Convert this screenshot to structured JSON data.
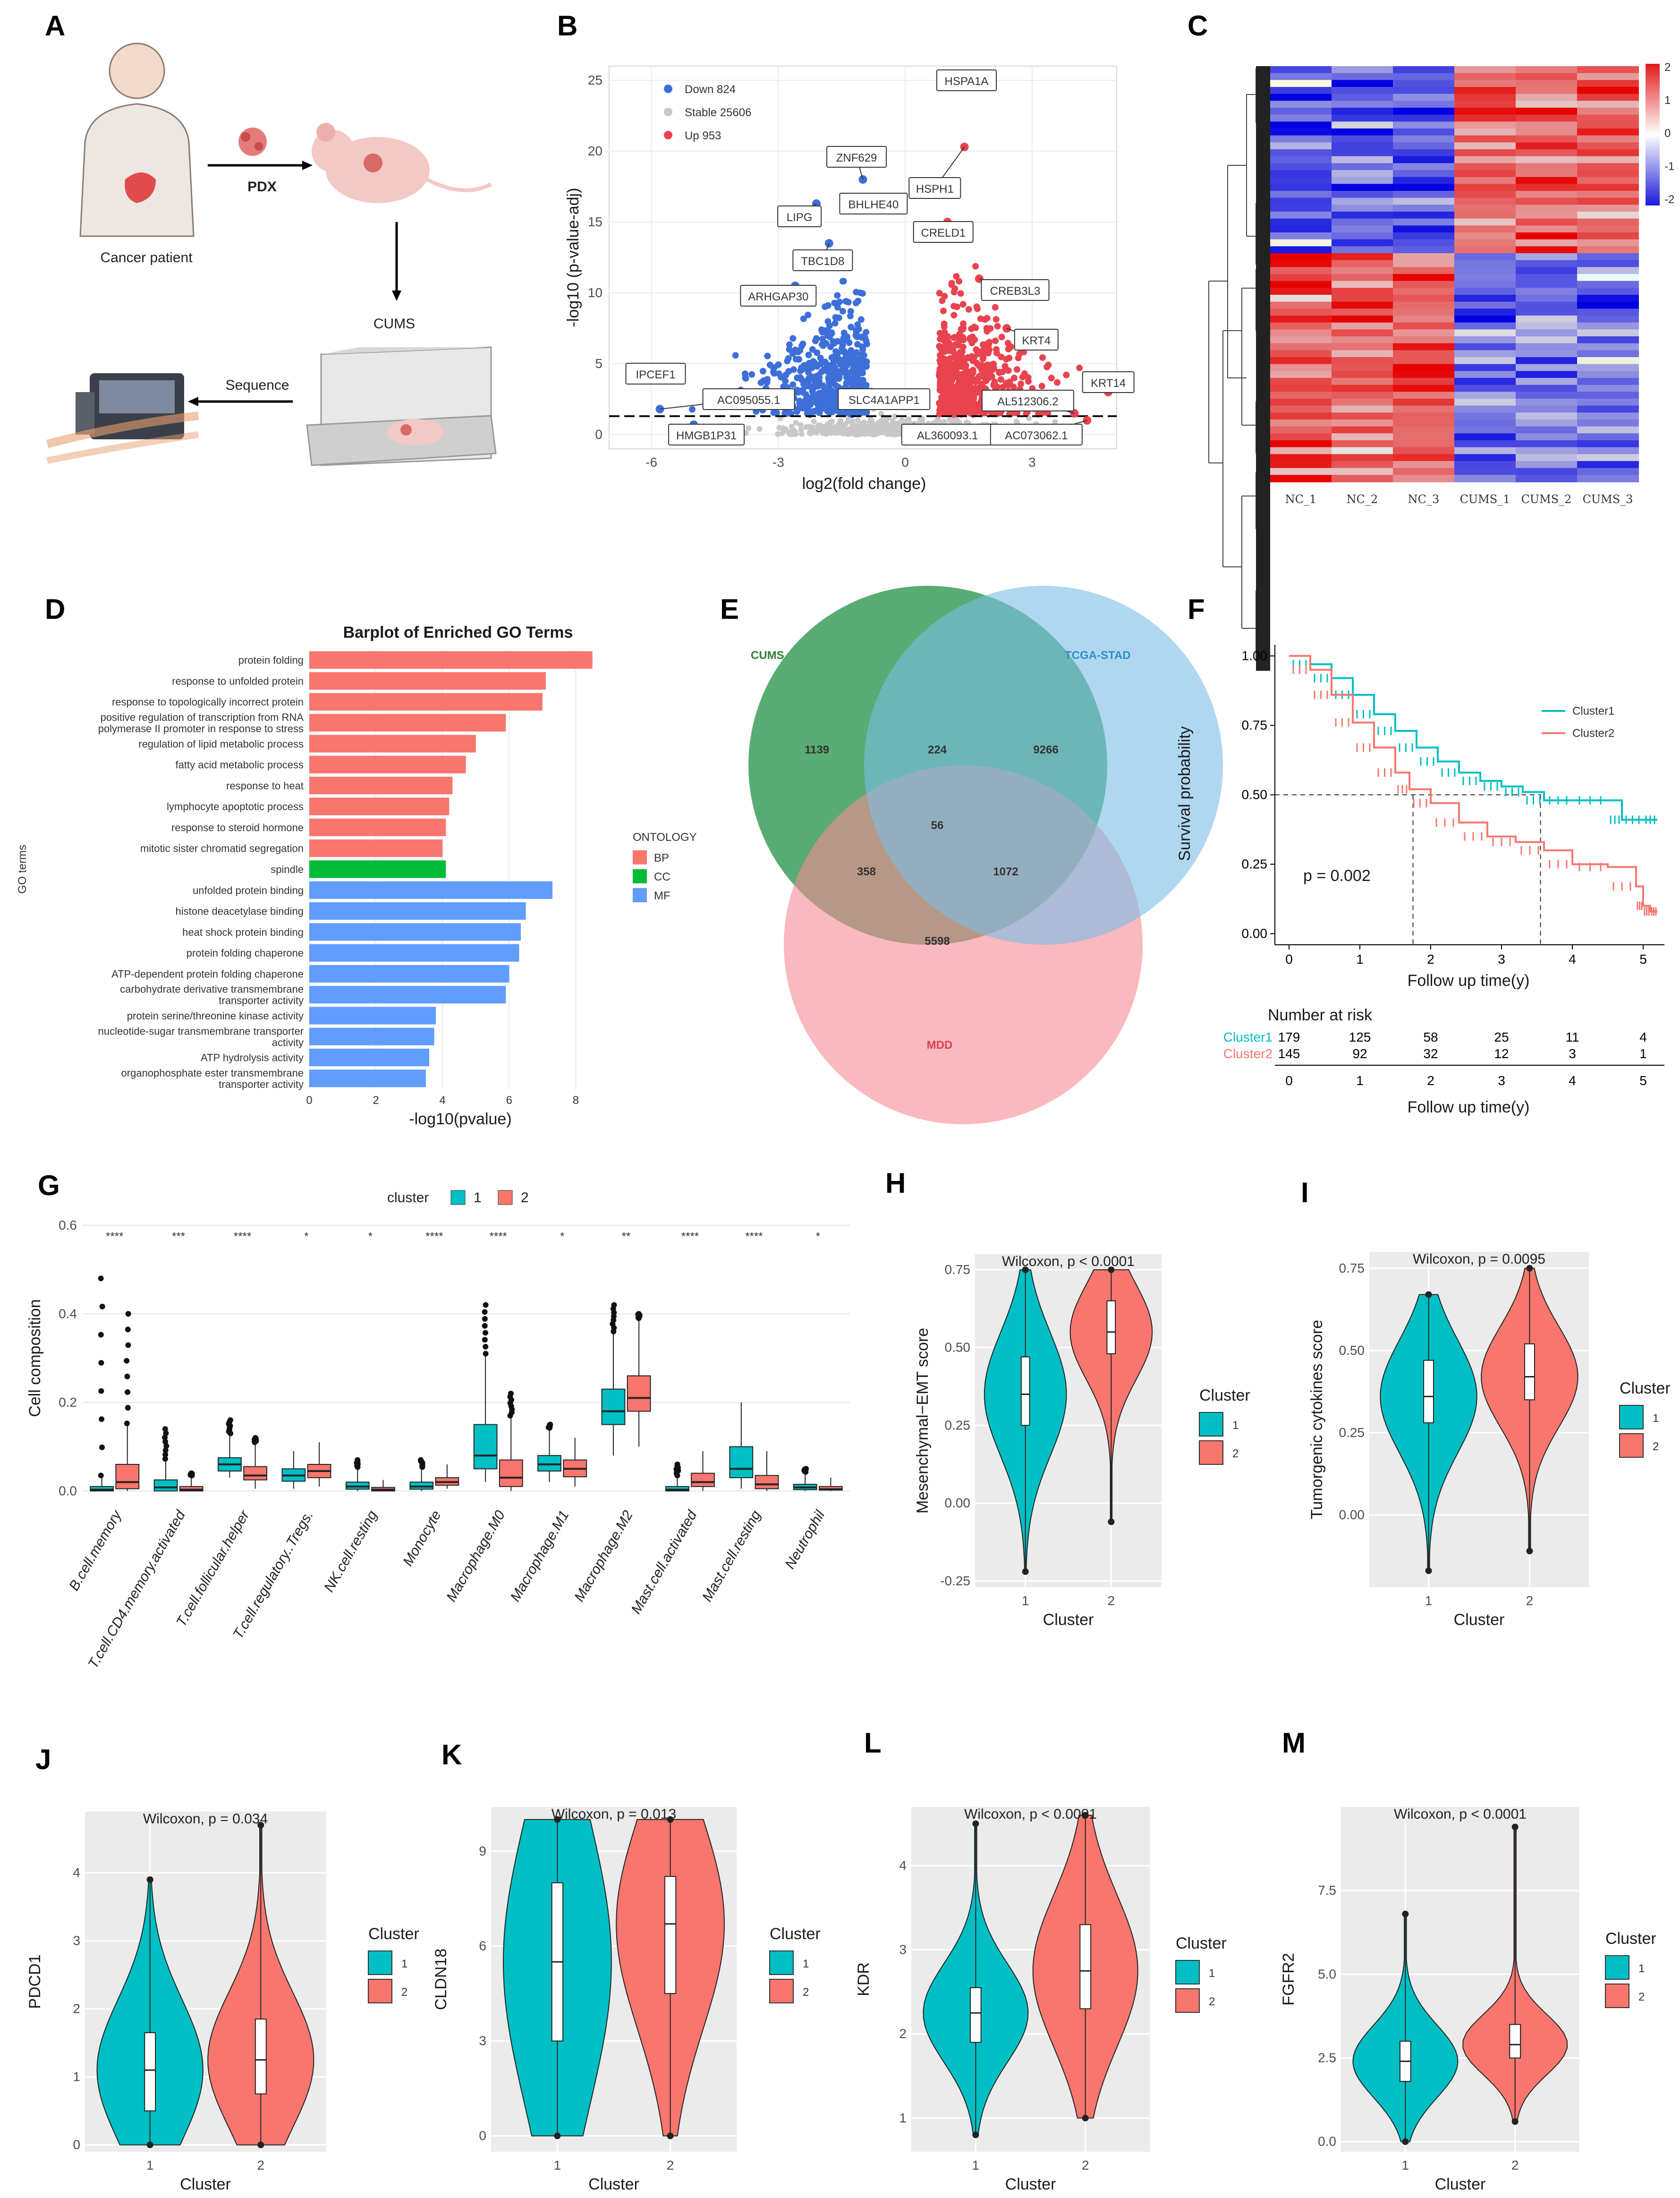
{
  "panels": {
    "A": {
      "letter": "A",
      "pdx": "PDX",
      "patient": "Cancer patient",
      "cums": "CUMS",
      "sequence": "Sequence"
    },
    "B": {
      "letter": "B"
    },
    "C": {
      "letter": "C"
    },
    "D": {
      "letter": "D"
    },
    "E": {
      "letter": "E"
    },
    "F": {
      "letter": "F"
    },
    "G": {
      "letter": "G"
    },
    "H": {
      "letter": "H"
    },
    "I": {
      "letter": "I"
    },
    "J": {
      "letter": "J"
    },
    "K": {
      "letter": "K"
    },
    "L": {
      "letter": "L"
    },
    "M": {
      "letter": "M"
    }
  },
  "colors": {
    "teal": "#00BFC4",
    "salmon": "#F8766D",
    "down": "#3E6FD8",
    "stable": "#C8C8C8",
    "up": "#E8434F",
    "bp": "#F8766D",
    "cc": "#00BA38",
    "mf": "#619CFF",
    "panelbg": "#EBEBEB",
    "venn_cums": "#3C9E5A",
    "venn_tcga": "#7BBCE6",
    "venn_mdd": "#F58A93"
  },
  "chart_data": [
    {
      "id": "B",
      "type": "scatter",
      "xlabel": "log2(fold change)",
      "ylabel": "-log10 (p-value-adj)",
      "xlim": [
        -7,
        5
      ],
      "ylim": [
        -1,
        26
      ],
      "xticks": [
        -6,
        -3,
        0,
        3
      ],
      "yticks": [
        0,
        5,
        10,
        15,
        20,
        25
      ],
      "threshold_y": 1.3,
      "legend": [
        {
          "label": "Down 824",
          "class": "down"
        },
        {
          "label": "Stable 25606",
          "class": "stable"
        },
        {
          "label": "Up 953",
          "class": "up"
        }
      ],
      "labels": [
        {
          "text": "HSPA1A",
          "x": 1.45,
          "y": 25.0,
          "lx": 1.45,
          "ly": 25.0,
          "cls": "up"
        },
        {
          "text": "ZNF629",
          "x": -1.0,
          "y": 18.0,
          "lx": -1.15,
          "ly": 19.6,
          "cls": "down"
        },
        {
          "text": "HSPH1",
          "x": 1.4,
          "y": 20.3,
          "lx": 0.7,
          "ly": 17.4,
          "cls": "up"
        },
        {
          "text": "BHLHE40",
          "x": -1.3,
          "y": 16.5,
          "lx": -0.75,
          "ly": 16.3,
          "cls": "down"
        },
        {
          "text": "LIPG",
          "x": -2.1,
          "y": 16.3,
          "lx": -2.5,
          "ly": 15.4,
          "cls": "down"
        },
        {
          "text": "CRELD1",
          "x": 1.0,
          "y": 15.0,
          "lx": 0.9,
          "ly": 14.3,
          "cls": "up"
        },
        {
          "text": "TBC1D8",
          "x": -1.8,
          "y": 13.5,
          "lx": -1.95,
          "ly": 12.3,
          "cls": "down"
        },
        {
          "text": "CREB3L3",
          "x": 1.75,
          "y": 11.0,
          "lx": 2.6,
          "ly": 10.2,
          "cls": "up"
        },
        {
          "text": "ARHGAP30",
          "x": -2.6,
          "y": 10.5,
          "lx": -3.0,
          "ly": 9.8,
          "cls": "down"
        },
        {
          "text": "KRT4",
          "x": 2.4,
          "y": 7.5,
          "lx": 3.1,
          "ly": 6.7,
          "cls": "up"
        },
        {
          "text": "IPCEF1",
          "x": -6.3,
          "y": 4.5,
          "lx": -5.9,
          "ly": 4.3,
          "cls": "down"
        },
        {
          "text": "KRT14",
          "x": 4.8,
          "y": 3.0,
          "lx": 4.8,
          "ly": 3.7,
          "cls": "up"
        },
        {
          "text": "AC095055.1",
          "x": -5.8,
          "y": 1.8,
          "lx": -3.7,
          "ly": 2.5,
          "cls": "down"
        },
        {
          "text": "SLC4A1APP1",
          "x": -0.8,
          "y": 3.0,
          "lx": -0.5,
          "ly": 2.5,
          "cls": "down"
        },
        {
          "text": "AL512306.2",
          "x": 4.0,
          "y": 1.5,
          "lx": 2.9,
          "ly": 2.4,
          "cls": "up"
        },
        {
          "text": "HMGB1P31",
          "x": -5.0,
          "y": 0.7,
          "lx": -4.7,
          "ly": 0.0,
          "cls": "down"
        },
        {
          "text": "AL360093.1",
          "x": 0.2,
          "y": 0.5,
          "lx": 1.0,
          "ly": 0.0,
          "cls": "up"
        },
        {
          "text": "AC073062.1",
          "x": 4.3,
          "y": 1.0,
          "lx": 3.1,
          "ly": 0.0,
          "cls": "up"
        }
      ]
    },
    {
      "id": "C",
      "type": "heatmap",
      "columns": [
        "NC_1",
        "NC_2",
        "NC_3",
        "CUMS_1",
        "CUMS_2",
        "CUMS_3"
      ],
      "scale_ticks": [
        2,
        1,
        0,
        -1,
        -2
      ]
    },
    {
      "id": "D",
      "type": "bar",
      "orientation": "horizontal",
      "title": "Barplot of Enriched GO Terms",
      "xlabel": "-log10(pvalue)",
      "ylabel": "GO terms",
      "xlim": [
        0,
        9
      ],
      "xticks": [
        0,
        2,
        4,
        6,
        8
      ],
      "legend_title": "ONTOLOGY",
      "legend": [
        "BP",
        "CC",
        "MF"
      ],
      "bars": [
        {
          "term": "protein folding",
          "value": 8.5,
          "ont": "BP"
        },
        {
          "term": "response to unfolded protein",
          "value": 7.1,
          "ont": "BP"
        },
        {
          "term": "response to topologically incorrect protein",
          "value": 7.0,
          "ont": "BP"
        },
        {
          "term": "positive regulation of transcription from RNA polymerase II promoter in response to stress",
          "value": 5.9,
          "ont": "BP"
        },
        {
          "term": "regulation of lipid metabolic process",
          "value": 5.0,
          "ont": "BP"
        },
        {
          "term": "fatty acid metabolic process",
          "value": 4.7,
          "ont": "BP"
        },
        {
          "term": "response to heat",
          "value": 4.3,
          "ont": "BP"
        },
        {
          "term": "lymphocyte apoptotic process",
          "value": 4.2,
          "ont": "BP"
        },
        {
          "term": "response to steroid hormone",
          "value": 4.1,
          "ont": "BP"
        },
        {
          "term": "mitotic sister chromatid segregation",
          "value": 4.0,
          "ont": "BP"
        },
        {
          "term": "spindle",
          "value": 4.1,
          "ont": "CC"
        },
        {
          "term": "unfolded protein binding",
          "value": 7.3,
          "ont": "MF"
        },
        {
          "term": "histone deacetylase binding",
          "value": 6.5,
          "ont": "MF"
        },
        {
          "term": "heat shock protein binding",
          "value": 6.35,
          "ont": "MF"
        },
        {
          "term": "protein folding chaperone",
          "value": 6.3,
          "ont": "MF"
        },
        {
          "term": "ATP-dependent protein folding chaperone",
          "value": 6.0,
          "ont": "MF"
        },
        {
          "term": "carbohydrate derivative transmembrane transporter activity",
          "value": 5.9,
          "ont": "MF"
        },
        {
          "term": "protein serine/threonine kinase activity",
          "value": 3.8,
          "ont": "MF"
        },
        {
          "term": "nucleotide-sugar transmembrane transporter activity",
          "value": 3.75,
          "ont": "MF"
        },
        {
          "term": "ATP hydrolysis activity",
          "value": 3.6,
          "ont": "MF"
        },
        {
          "term": "organophosphate ester transmembrane transporter activity",
          "value": 3.5,
          "ont": "MF"
        }
      ]
    },
    {
      "id": "E",
      "type": "venn",
      "sets": [
        "CUMS",
        "TCGA-STAD",
        "MDD"
      ],
      "counts": {
        "cums_only": "1139",
        "tcga_only": "9266",
        "mdd_only": "5598",
        "cums_tcga": "224",
        "cums_mdd": "358",
        "tcga_mdd": "1072",
        "all": "56"
      }
    },
    {
      "id": "F",
      "type": "line",
      "xlabel": "Follow up time(y)",
      "ylabel": "Survival probability",
      "xlim": [
        -0.2,
        5.3
      ],
      "ylim": [
        -0.04,
        1.04
      ],
      "xticks": [
        0,
        1,
        2,
        3,
        4,
        5
      ],
      "yticks": [
        "0.00",
        "0.25",
        "0.50",
        "0.75",
        "1.00"
      ],
      "pvalue": "p = 0.002",
      "series": [
        {
          "name": "Cluster1",
          "x": [
            0,
            0.3,
            0.6,
            0.9,
            1.2,
            1.5,
            1.8,
            2.1,
            2.4,
            2.7,
            3.0,
            3.3,
            3.6,
            4.0,
            4.5,
            4.7,
            5.0,
            5.2
          ],
          "y": [
            1.0,
            0.97,
            0.92,
            0.86,
            0.79,
            0.73,
            0.67,
            0.62,
            0.58,
            0.55,
            0.53,
            0.51,
            0.48,
            0.48,
            0.48,
            0.41,
            0.41,
            0.41
          ]
        },
        {
          "name": "Cluster2",
          "x": [
            0,
            0.3,
            0.6,
            0.9,
            1.2,
            1.5,
            1.7,
            2.0,
            2.4,
            2.8,
            3.2,
            3.6,
            4.0,
            4.5,
            4.9,
            5.0,
            5.1,
            5.2
          ],
          "y": [
            1.0,
            0.95,
            0.86,
            0.76,
            0.67,
            0.58,
            0.52,
            0.47,
            0.4,
            0.35,
            0.33,
            0.3,
            0.25,
            0.24,
            0.17,
            0.1,
            0.08,
            0.08
          ]
        }
      ],
      "median_lines": [
        1.75,
        3.55
      ],
      "risk_title": "Number at risk",
      "risk": [
        {
          "name": "Cluster1",
          "values": [
            "179",
            "125",
            "58",
            "25",
            "11",
            "4"
          ]
        },
        {
          "name": "Cluster2",
          "values": [
            "145",
            "92",
            "32",
            "12",
            "3",
            "1"
          ]
        }
      ]
    },
    {
      "id": "G",
      "type": "box",
      "legend_title": "cluster",
      "legend": [
        "1",
        "2"
      ],
      "ylabel": "Cell composition",
      "ylim": [
        -0.02,
        0.62
      ],
      "yticks": [
        "0.0",
        "0.2",
        "0.4",
        "0.6"
      ],
      "categories": [
        "B.cell.memory",
        "T.cell.CD4.memory.activated",
        "T.cell.follicular.helper",
        "T.cell.regulatory..Tregs.",
        "NK.cell.resting",
        "Monocyte",
        "Macrophage.M0",
        "Macrophage.M1",
        "Macrophage.M2",
        "Mast.cell.activated",
        "Mast.cell.resting",
        "Neutrophil"
      ],
      "signif": [
        "****",
        "***",
        "****",
        "*",
        "*",
        "****",
        "****",
        "*",
        "**",
        "****",
        "****",
        "*"
      ],
      "series": [
        {
          "name": "1",
          "boxes": [
            [
              0,
              0,
              0.003,
              0.01,
              0.48
            ],
            [
              0,
              0,
              0.008,
              0.025,
              0.14
            ],
            [
              0.03,
              0.045,
              0.06,
              0.075,
              0.16
            ],
            [
              0.005,
              0.022,
              0.035,
              0.05,
              0.09
            ],
            [
              0,
              0.004,
              0.01,
              0.02,
              0.07
            ],
            [
              0,
              0.004,
              0.01,
              0.02,
              0.07
            ],
            [
              0.02,
              0.05,
              0.08,
              0.15,
              0.42
            ],
            [
              0.02,
              0.045,
              0.06,
              0.08,
              0.15
            ],
            [
              0.08,
              0.15,
              0.18,
              0.23,
              0.42
            ],
            [
              0,
              0,
              0.003,
              0.01,
              0.06
            ],
            [
              0.005,
              0.03,
              0.05,
              0.1,
              0.2
            ],
            [
              0,
              0.003,
              0.008,
              0.015,
              0.05
            ]
          ]
        },
        {
          "name": "2",
          "boxes": [
            [
              0,
              0.005,
              0.02,
              0.06,
              0.4
            ],
            [
              0,
              0,
              0.003,
              0.01,
              0.04
            ],
            [
              0.005,
              0.025,
              0.035,
              0.055,
              0.12
            ],
            [
              0.01,
              0.03,
              0.045,
              0.06,
              0.11
            ],
            [
              0,
              0,
              0.003,
              0.008,
              0.025
            ],
            [
              0.005,
              0.013,
              0.02,
              0.03,
              0.06
            ],
            [
              0,
              0.01,
              0.03,
              0.07,
              0.22
            ],
            [
              0.01,
              0.032,
              0.05,
              0.07,
              0.12
            ],
            [
              0.1,
              0.18,
              0.21,
              0.26,
              0.4
            ],
            [
              0,
              0.01,
              0.02,
              0.04,
              0.09
            ],
            [
              0,
              0.005,
              0.015,
              0.035,
              0.09
            ],
            [
              0,
              0.002,
              0.004,
              0.01,
              0.03
            ]
          ]
        }
      ]
    },
    {
      "id": "H",
      "type": "violin",
      "test": "Wilcoxon, p < 0.0001",
      "xlabel": "Cluster",
      "ylabel": "Mesenchymal−EMT score",
      "ylim": [
        -0.27,
        0.8
      ],
      "yticks": [
        "-0.25",
        "0.00",
        "0.25",
        "0.50",
        "0.75"
      ],
      "tickvals": [
        -0.25,
        0,
        0.25,
        0.5,
        0.75
      ],
      "legend_title": "Cluster",
      "legend": [
        "1",
        "2"
      ],
      "groups": [
        {
          "name": "1",
          "min": -0.22,
          "q1": 0.25,
          "median": 0.35,
          "q3": 0.47,
          "max": 0.75
        },
        {
          "name": "2",
          "min": -0.06,
          "q1": 0.48,
          "median": 0.55,
          "q3": 0.65,
          "max": 0.75
        }
      ]
    },
    {
      "id": "I",
      "type": "violin",
      "test": "Wilcoxon, p = 0.0095",
      "xlabel": "Cluster",
      "ylabel": "Tumorgenic cytokines score",
      "ylim": [
        -0.22,
        0.8
      ],
      "yticks": [
        "0.00",
        "0.25",
        "0.50",
        "0.75"
      ],
      "tickvals": [
        0,
        0.25,
        0.5,
        0.75
      ],
      "legend_title": "Cluster",
      "legend": [
        "1",
        "2"
      ],
      "groups": [
        {
          "name": "1",
          "min": -0.17,
          "q1": 0.28,
          "median": 0.36,
          "q3": 0.47,
          "max": 0.67
        },
        {
          "name": "2",
          "min": -0.11,
          "q1": 0.35,
          "median": 0.42,
          "q3": 0.52,
          "max": 0.75
        }
      ]
    },
    {
      "id": "J",
      "type": "violin",
      "test": "Wilcoxon, p = 0.034",
      "xlabel": "Cluster",
      "ylabel": "PDCD1",
      "ylim": [
        -0.1,
        4.9
      ],
      "yticks": [
        "0",
        "1",
        "2",
        "3",
        "4"
      ],
      "tickvals": [
        0,
        1,
        2,
        3,
        4
      ],
      "legend_title": "Cluster",
      "legend": [
        "1",
        "2"
      ],
      "groups": [
        {
          "name": "1",
          "min": 0,
          "q1": 0.5,
          "median": 1.1,
          "q3": 1.65,
          "max": 3.9
        },
        {
          "name": "2",
          "min": 0,
          "q1": 0.75,
          "median": 1.25,
          "q3": 1.85,
          "max": 4.7
        }
      ]
    },
    {
      "id": "K",
      "type": "violin",
      "test": "Wilcoxon, p = 0.013",
      "xlabel": "Cluster",
      "ylabel": "CLDN18",
      "ylim": [
        -0.5,
        10.4
      ],
      "yticks": [
        "0",
        "3",
        "6",
        "9"
      ],
      "tickvals": [
        0,
        3,
        6,
        9
      ],
      "legend_title": "Cluster",
      "legend": [
        "1",
        "2"
      ],
      "groups": [
        {
          "name": "1",
          "min": 0,
          "q1": 3.0,
          "median": 5.5,
          "q3": 8.0,
          "max": 10.0
        },
        {
          "name": "2",
          "min": 0,
          "q1": 4.5,
          "median": 6.7,
          "q3": 8.2,
          "max": 10.0
        }
      ]
    },
    {
      "id": "L",
      "type": "violin",
      "test": "Wilcoxon, p < 0.0001",
      "xlabel": "Cluster",
      "ylabel": "KDR",
      "ylim": [
        0.6,
        4.7
      ],
      "yticks": [
        "1",
        "2",
        "3",
        "4"
      ],
      "tickvals": [
        1,
        2,
        3,
        4
      ],
      "legend_title": "Cluster",
      "legend": [
        "1",
        "2"
      ],
      "groups": [
        {
          "name": "1",
          "min": 0.8,
          "q1": 1.9,
          "median": 2.25,
          "q3": 2.55,
          "max": 4.5
        },
        {
          "name": "2",
          "min": 1.0,
          "q1": 2.3,
          "median": 2.75,
          "q3": 3.3,
          "max": 4.6
        }
      ]
    },
    {
      "id": "M",
      "type": "violin",
      "test": "Wilcoxon, p < 0.0001",
      "xlabel": "Cluster",
      "ylabel": "FGFR2",
      "ylim": [
        -0.3,
        10.0
      ],
      "yticks": [
        "0.0",
        "2.5",
        "5.0",
        "7.5"
      ],
      "tickvals": [
        0,
        2.5,
        5,
        7.5
      ],
      "legend_title": "Cluster",
      "legend": [
        "1",
        "2"
      ],
      "groups": [
        {
          "name": "1",
          "min": 0,
          "q1": 1.8,
          "median": 2.4,
          "q3": 3.0,
          "max": 6.8
        },
        {
          "name": "2",
          "min": 0.6,
          "q1": 2.5,
          "median": 2.9,
          "q3": 3.5,
          "max": 9.4
        }
      ]
    }
  ]
}
